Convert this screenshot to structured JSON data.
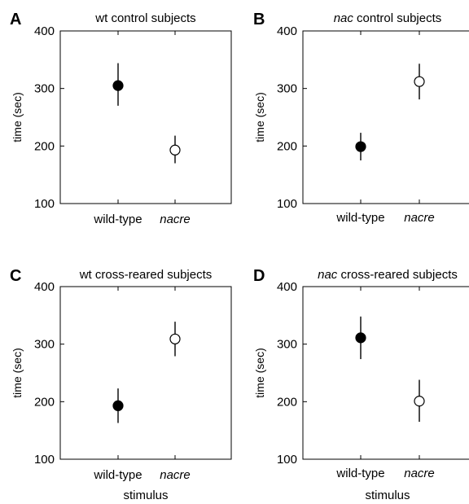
{
  "chart_data": [
    {
      "type": "scatter",
      "panel_letter": "A",
      "title": "wt control subjects",
      "title_italic_part": "",
      "title_rest": "",
      "ylabel": "time (sec)",
      "xlabel": "",
      "ylim": [
        100,
        400
      ],
      "yticks": [
        100,
        200,
        300,
        400
      ],
      "categories": [
        "wild-type",
        "nacre"
      ],
      "points": [
        {
          "category": "wild-type",
          "mean": 305,
          "err_low": 270,
          "err_high": 344,
          "fill": "filled"
        },
        {
          "category": "nacre",
          "mean": 193,
          "err_low": 170,
          "err_high": 218,
          "fill": "open"
        }
      ]
    },
    {
      "type": "scatter",
      "panel_letter": "B",
      "title": "",
      "title_italic_part": "nac",
      "title_rest": " control subjects",
      "ylabel": "time (sec)",
      "xlabel": "",
      "ylim": [
        100,
        400
      ],
      "yticks": [
        100,
        200,
        300,
        400
      ],
      "categories": [
        "wild-type",
        "nacre"
      ],
      "points": [
        {
          "category": "wild-type",
          "mean": 199,
          "err_low": 175,
          "err_high": 223,
          "fill": "filled"
        },
        {
          "category": "nacre",
          "mean": 312,
          "err_low": 281,
          "err_high": 343,
          "fill": "open"
        }
      ]
    },
    {
      "type": "scatter",
      "panel_letter": "C",
      "title": "wt cross-reared subjects",
      "title_italic_part": "",
      "title_rest": "",
      "ylabel": "time (sec)",
      "xlabel": "stimulus",
      "ylim": [
        100,
        400
      ],
      "yticks": [
        100,
        200,
        300,
        400
      ],
      "categories": [
        "wild-type",
        "nacre"
      ],
      "points": [
        {
          "category": "wild-type",
          "mean": 193,
          "err_low": 163,
          "err_high": 223,
          "fill": "filled"
        },
        {
          "category": "nacre",
          "mean": 309,
          "err_low": 279,
          "err_high": 339,
          "fill": "open"
        }
      ]
    },
    {
      "type": "scatter",
      "panel_letter": "D",
      "title": "",
      "title_italic_part": "nac",
      "title_rest": " cross-reared subjects",
      "ylabel": "time (sec)",
      "xlabel": "stimulus",
      "ylim": [
        100,
        400
      ],
      "yticks": [
        100,
        200,
        300,
        400
      ],
      "categories": [
        "wild-type",
        "nacre"
      ],
      "points": [
        {
          "category": "wild-type",
          "mean": 311,
          "err_low": 274,
          "err_high": 348,
          "fill": "filled"
        },
        {
          "category": "nacre",
          "mean": 201,
          "err_low": 165,
          "err_high": 238,
          "fill": "open"
        }
      ]
    }
  ]
}
